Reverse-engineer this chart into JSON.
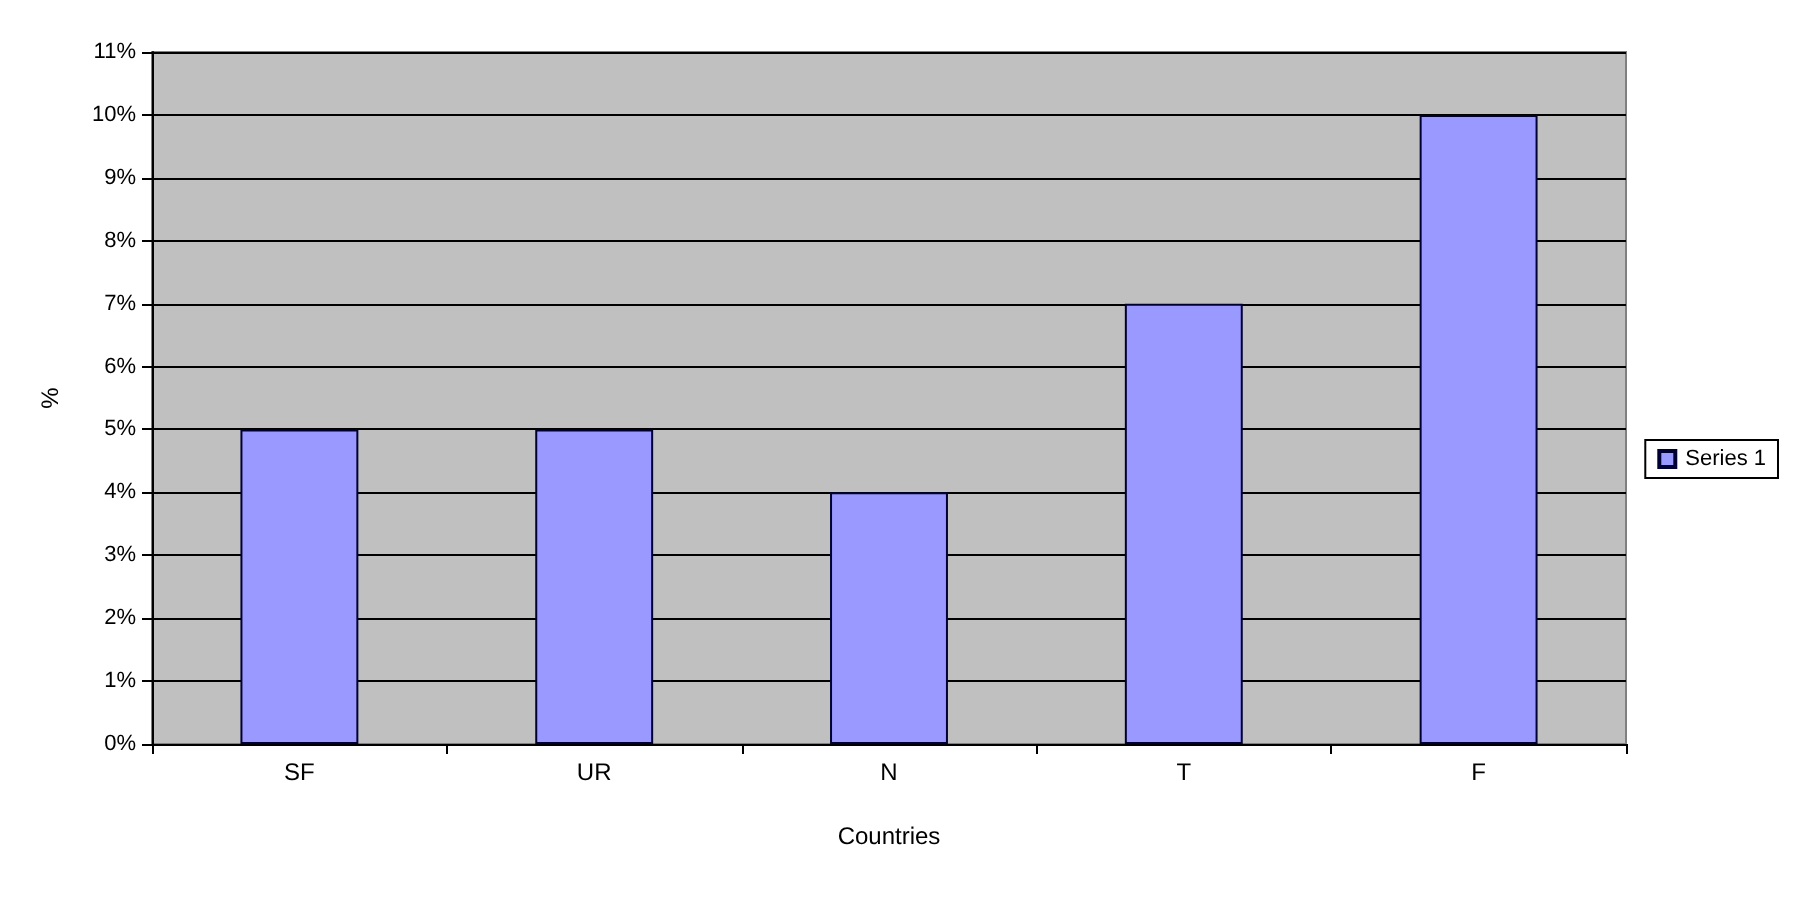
{
  "chart_data": {
    "type": "bar",
    "xlabel": "Countries",
    "ylabel": "%",
    "categories": [
      "SF",
      "UR",
      "N",
      "T",
      "F"
    ],
    "series": [
      {
        "name": "Series 1",
        "color": "#9999ff",
        "values": [
          5,
          5,
          4,
          7,
          10
        ]
      }
    ],
    "ylim": [
      0,
      11
    ],
    "yticks": [
      {
        "value": 0,
        "label": "0%"
      },
      {
        "value": 1,
        "label": "1%"
      },
      {
        "value": 2,
        "label": "2%"
      },
      {
        "value": 3,
        "label": "3%"
      },
      {
        "value": 4,
        "label": "4%"
      },
      {
        "value": 5,
        "label": "5%"
      },
      {
        "value": 6,
        "label": "6%"
      },
      {
        "value": 7,
        "label": "7%"
      },
      {
        "value": 8,
        "label": "8%"
      },
      {
        "value": 9,
        "label": "9%"
      },
      {
        "value": 10,
        "label": "10%"
      },
      {
        "value": 11,
        "label": "11%"
      }
    ],
    "grid": "y",
    "legend": "right"
  }
}
